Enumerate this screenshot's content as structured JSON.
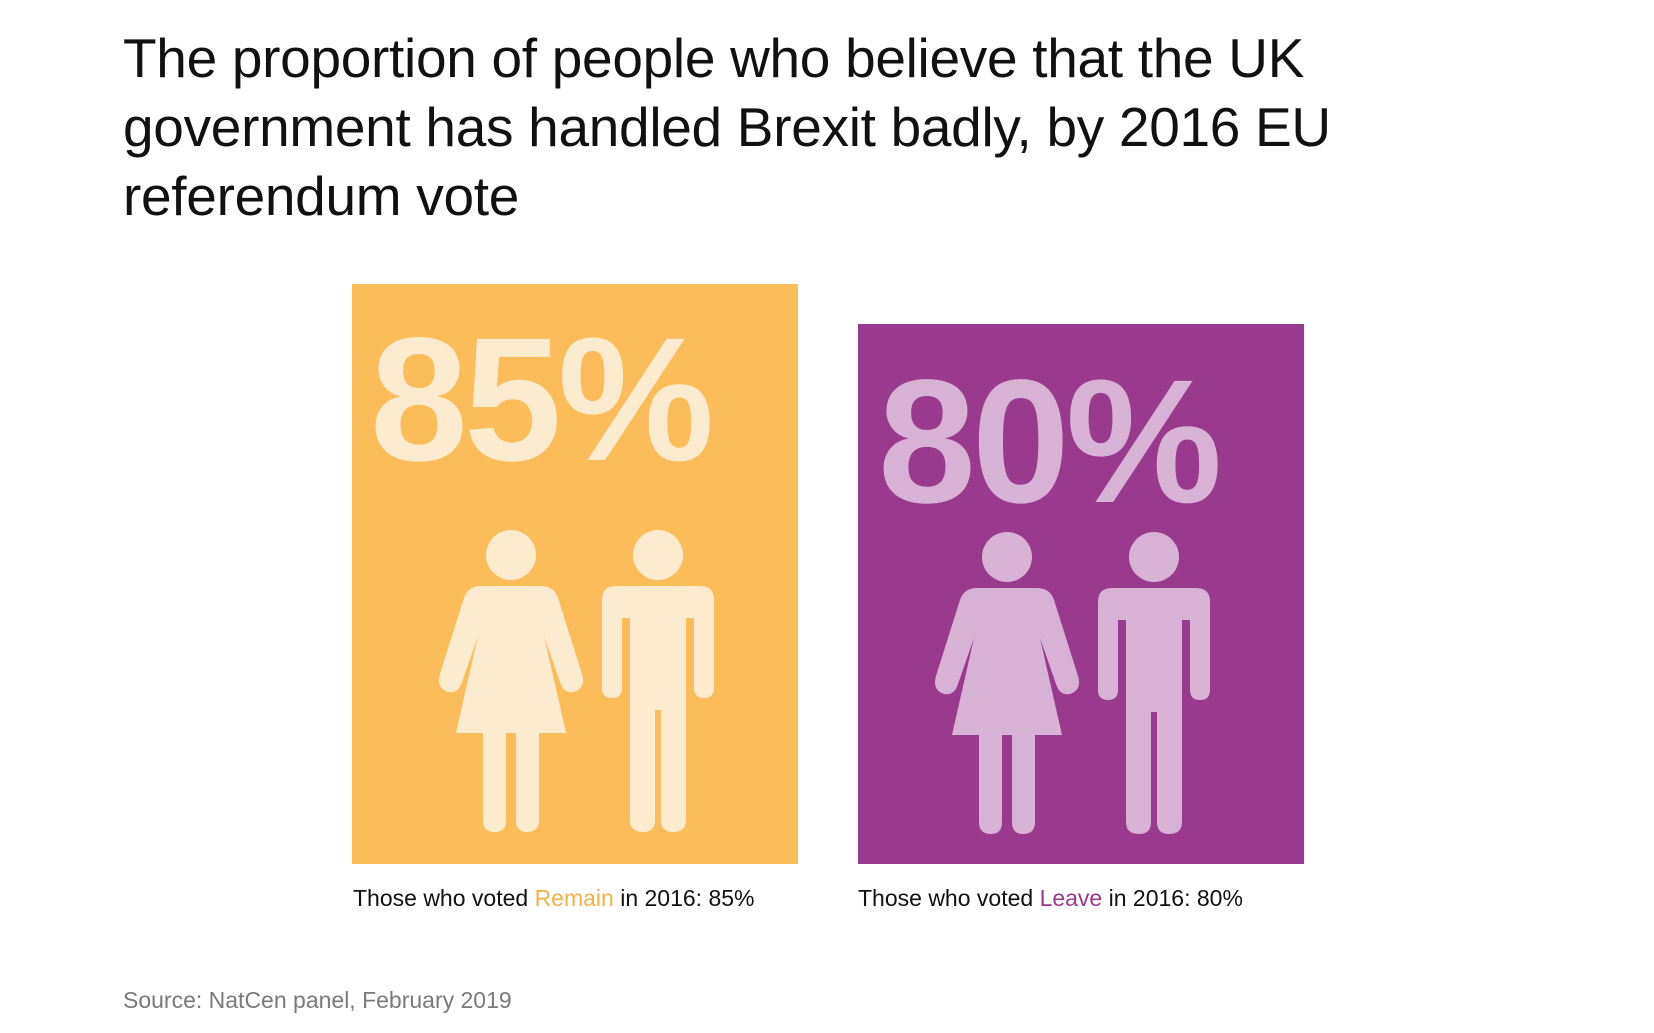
{
  "title": "The proportion of people who believe that the UK government has handled Brexit badly, by 2016 EU referendum vote",
  "source": "Source: NatCen panel, February 2019",
  "chart_data": {
    "type": "bar",
    "title": "The proportion of people who believe that the UK government has handled Brexit badly, by 2016 EU referendum vote",
    "categories": [
      "Remain",
      "Leave"
    ],
    "values": [
      85,
      80
    ],
    "unit": "%",
    "colors": [
      "#FBBD59",
      "#9A3A8E"
    ],
    "label_colors": [
      "#FDEBD0",
      "#D7B2D5"
    ]
  },
  "panels": [
    {
      "percent_label": "85%",
      "caption_prefix": "Those who voted ",
      "group": "Remain",
      "caption_suffix": " in 2016: 85%",
      "box_color": "#FBBD59",
      "icon_color": "#FDEBD0",
      "group_color": "#F5B04A"
    },
    {
      "percent_label": "80%",
      "caption_prefix": "Those who voted ",
      "group": "Leave",
      "caption_suffix": " in 2016: 80%",
      "box_color": "#9A3A8E",
      "icon_color": "#D7B2D5",
      "group_color": "#9A3A8E"
    }
  ]
}
